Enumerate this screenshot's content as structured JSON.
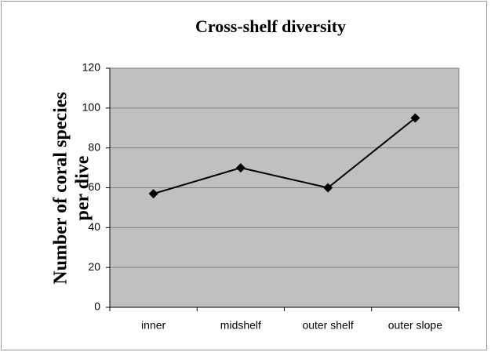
{
  "chart_data": {
    "type": "line",
    "title": "Cross-shelf diversity",
    "ylabel": [
      "Number of coral species",
      "per dive"
    ],
    "categories": [
      "inner",
      "midshelf",
      "outer shelf",
      "outer slope"
    ],
    "values": [
      57,
      70,
      60,
      95
    ],
    "color": "#000000",
    "plot_background": "#c0c0c0",
    "ylim": [
      0,
      120
    ],
    "yticks": [
      0,
      20,
      40,
      60,
      80,
      100,
      120
    ],
    "grid": true
  }
}
